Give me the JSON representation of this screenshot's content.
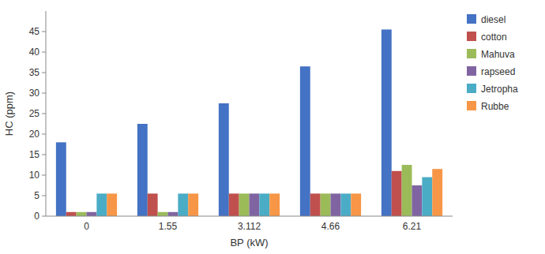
{
  "chart_data": {
    "type": "bar",
    "xlabel": "BP (kW)",
    "ylabel": "HC (ppm)",
    "categories": [
      "0",
      "1.55",
      "3.112",
      "4.66",
      "6.21"
    ],
    "series": [
      {
        "name": "diesel",
        "color": "#4472C4",
        "values": [
          18,
          22.5,
          27.5,
          36.5,
          45.5
        ]
      },
      {
        "name": "cotton",
        "color": "#C0504D",
        "values": [
          1,
          5.5,
          5.5,
          5.5,
          11
        ]
      },
      {
        "name": "Mahuva",
        "color": "#9BBB59",
        "values": [
          1,
          1,
          5.5,
          5.5,
          12.5
        ]
      },
      {
        "name": "rapseed",
        "color": "#8064A2",
        "values": [
          1,
          1,
          5.5,
          5.5,
          7.5
        ]
      },
      {
        "name": "Jetropha",
        "color": "#4BACC6",
        "values": [
          5.5,
          5.5,
          5.5,
          5.5,
          9.5
        ]
      },
      {
        "name": "Rubbe",
        "color": "#F79646",
        "values": [
          5.5,
          5.5,
          5.5,
          5.5,
          11.5
        ]
      }
    ],
    "ylim": [
      0,
      50
    ],
    "yticks": [
      0,
      5,
      10,
      15,
      20,
      25,
      30,
      35,
      40,
      45
    ],
    "grid": false,
    "legend": "right"
  }
}
